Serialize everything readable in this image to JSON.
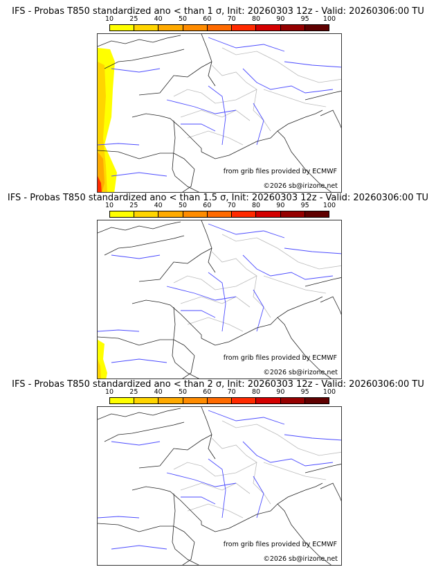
{
  "panels": [
    {
      "title": "IFS - Probas T850  standardized ano < than 1 σ, Init: 20260303 12z - Valid: 20260306:00 TU",
      "shading": "wide"
    },
    {
      "title": "IFS - Probas T850  standardized ano < than 1.5 σ, Init: 20260303 12z - Valid: 20260306:00 TU",
      "shading": "small"
    },
    {
      "title": "IFS - Probas T850  standardized ano < than 2 σ, Init: 20260303 12z - Valid: 20260306:00 TU",
      "shading": "none"
    }
  ],
  "legend": {
    "ticks": [
      "10",
      "25",
      "40",
      "50",
      "60",
      "70",
      "80",
      "90",
      "95",
      "100"
    ],
    "colors": [
      "#ffff00",
      "#ffd500",
      "#ffaa00",
      "#ff8c00",
      "#ff6a00",
      "#ff2a00",
      "#d40000",
      "#950000",
      "#5f0000"
    ]
  },
  "credits": {
    "source": "from grib files provided by ECMWF",
    "copyright": "©2026 sb@irizone.net"
  }
}
